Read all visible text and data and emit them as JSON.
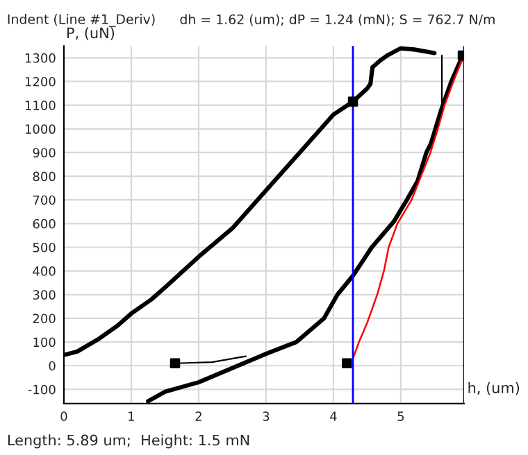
{
  "chart_data": {
    "type": "line",
    "title": "Indent (Line #1_Deriv)",
    "subtitle": "dh = 1.62 (um); dP = 1.24 (mN); S = 762.7 N/m",
    "xlabel": "h, (um)",
    "ylabel": "P, (uN)",
    "annotations": [
      "Length: 5.89 um;  Height: 1.5 mN"
    ],
    "series": [
      {
        "color": "#000000",
        "x": [
          0,
          0.2,
          0.5,
          0.8,
          1.0,
          1.3,
          1.5,
          2.0,
          2.5,
          3.0,
          3.5,
          4.0,
          4.29,
          4.5,
          4.55,
          4.58,
          4.7,
          4.8,
          5.0,
          5.2,
          5.4,
          5.5
        ],
        "values": [
          45,
          60,
          110,
          170,
          220,
          280,
          330,
          460,
          580,
          740,
          900,
          1060,
          1115,
          1170,
          1190,
          1260,
          1290,
          1310,
          1340,
          1335,
          1325,
          1320
        ]
      },
      {
        "color": "#000000",
        "x": [
          5.92,
          5.75,
          5.6,
          5.45,
          5.38,
          5.25,
          5.09,
          4.9,
          4.57,
          4.29,
          4.06,
          3.86,
          3.45,
          3.0,
          2.5,
          2.0,
          1.5,
          1.25
        ],
        "values": [
          1310,
          1200,
          1080,
          940,
          900,
          780,
          700,
          610,
          500,
          380,
          300,
          200,
          100,
          50,
          -10,
          -70,
          -110,
          -150
        ]
      },
      {
        "color": "#ff0000",
        "x": [
          4.29,
          4.38,
          4.5,
          4.65,
          4.75,
          4.82,
          4.95,
          5.16,
          5.3,
          5.44,
          5.55,
          5.65,
          5.78,
          5.92
        ],
        "values": [
          30,
          100,
          180,
          300,
          400,
          500,
          600,
          700,
          800,
          900,
          1000,
          1100,
          1200,
          1300
        ]
      },
      {
        "color": "#000000",
        "x": [
          1.65,
          2.2,
          2.7
        ],
        "values": [
          10,
          15,
          40
        ]
      },
      {
        "color": "#000000",
        "x": [
          5.61,
          5.61,
          5.45
        ],
        "values": [
          1310,
          1080,
          940
        ]
      },
      {
        "type": "scatter",
        "color": "#000000",
        "marker": "square",
        "x": [
          1.65,
          4.2,
          4.29,
          5.92
        ],
        "values": [
          10,
          10,
          1115,
          1310
        ]
      }
    ],
    "ref_lines": [
      {
        "axis": "x",
        "value": 4.29,
        "color": "#0000ff"
      },
      {
        "axis": "x",
        "value": 5.94,
        "color": "#0000ff"
      }
    ],
    "xlim": [
      0,
      5.94
    ],
    "ylim": [
      -160,
      1350
    ],
    "xticks": [
      0,
      1,
      2,
      3,
      4,
      5
    ],
    "yticks": [
      -100,
      0,
      100,
      200,
      300,
      400,
      500,
      600,
      700,
      800,
      900,
      1000,
      1100,
      1200,
      1300
    ],
    "grid": true
  }
}
